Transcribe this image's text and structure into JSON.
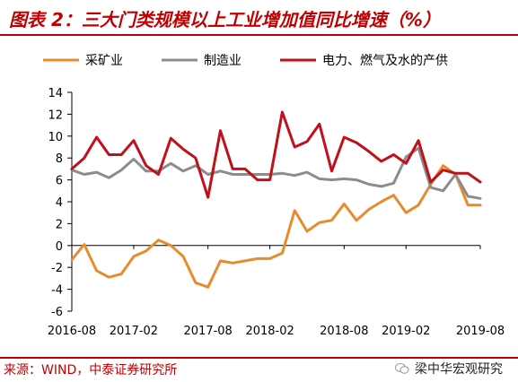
{
  "header": {
    "title": "图表 2：三大门类规模以上工业增加值同比增速（%）"
  },
  "footer": {
    "source": "来源：WIND，中泰证券研究所",
    "watermark": "梁中华宏观研究"
  },
  "colors": {
    "mining": "#e98a2d",
    "manufacturing": "#8c8c8c",
    "utilities": "#c0101b",
    "brand": "#c00000"
  },
  "chart_data": {
    "type": "line",
    "x": [
      "2016-08",
      "2016-09",
      "2016-10",
      "2016-11",
      "2016-12",
      "2017-02",
      "2017-03",
      "2017-04",
      "2017-05",
      "2017-06",
      "2017-07",
      "2017-08",
      "2017-09",
      "2017-10",
      "2017-11",
      "2017-12",
      "2018-02",
      "2018-03",
      "2018-04",
      "2018-05",
      "2018-06",
      "2018-07",
      "2018-08",
      "2018-09",
      "2018-10",
      "2018-11",
      "2018-12",
      "2019-02",
      "2019-03",
      "2019-04",
      "2019-05",
      "2019-06",
      "2019-07",
      "2019-08"
    ],
    "xticks": [
      "2016-08",
      "2017-02",
      "2017-08",
      "2018-02",
      "2018-08",
      "2019-02",
      "2019-08"
    ],
    "ylim": [
      -6,
      14
    ],
    "yticks": [
      -6,
      -4,
      -2,
      0,
      2,
      4,
      6,
      8,
      10,
      12,
      14
    ],
    "series": [
      {
        "name": "采矿业",
        "color_key": "mining",
        "values": [
          -1.3,
          0.1,
          -2.3,
          -2.9,
          -2.6,
          -1.0,
          -0.5,
          0.5,
          0.0,
          -1.0,
          -3.4,
          -3.8,
          -1.4,
          -1.6,
          -1.4,
          -1.2,
          -1.2,
          -0.7,
          3.2,
          1.3,
          2.1,
          2.3,
          3.8,
          2.3,
          3.3,
          4.0,
          4.6,
          3.0,
          3.7,
          5.6,
          7.3,
          6.5,
          3.7,
          3.7
        ]
      },
      {
        "name": "制造业",
        "color_key": "manufacturing",
        "values": [
          6.9,
          6.5,
          6.7,
          6.2,
          6.9,
          7.9,
          6.8,
          6.8,
          7.5,
          6.8,
          7.3,
          6.5,
          6.8,
          6.5,
          6.5,
          6.5,
          6.5,
          6.6,
          6.4,
          6.7,
          6.1,
          6.0,
          6.1,
          6.0,
          5.6,
          5.4,
          5.7,
          8.1,
          8.9,
          5.3,
          5.0,
          6.5,
          4.5,
          4.3
        ]
      },
      {
        "name": "电力、燃气及水的产供",
        "color_key": "utilities",
        "values": [
          7.0,
          8.0,
          9.9,
          8.3,
          8.3,
          9.6,
          7.3,
          6.5,
          9.8,
          8.8,
          8.0,
          4.4,
          10.5,
          7.0,
          7.0,
          6.0,
          6.0,
          12.2,
          9.0,
          9.5,
          11.1,
          6.8,
          9.9,
          9.4,
          8.6,
          7.7,
          8.3,
          7.5,
          9.6,
          5.8,
          6.9,
          6.6,
          6.6,
          5.8
        ]
      }
    ]
  }
}
